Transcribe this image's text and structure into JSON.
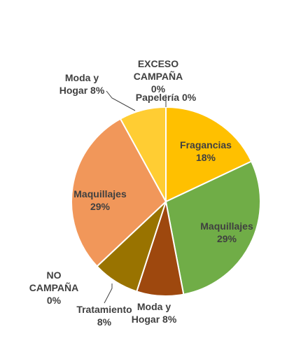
{
  "chart_data": {
    "type": "pie",
    "grid": false,
    "legend": "none",
    "slices": [
      {
        "id": "fragancias",
        "label": [
          "Fragancias",
          "18%"
        ],
        "value": 18,
        "color": "#FFC000"
      },
      {
        "id": "maquillajes-a",
        "label": [
          "Maquillajes",
          "29%"
        ],
        "value": 29,
        "color": "#70AD47"
      },
      {
        "id": "moda-hogar-a",
        "label": [
          "Moda y",
          "Hogar 8%"
        ],
        "value": 8,
        "color": "#9E480E"
      },
      {
        "id": "tratamiento",
        "label": [
          "Tratamiento",
          "8%"
        ],
        "value": 8,
        "color": "#997300"
      },
      {
        "id": "no-campana",
        "label": [
          "NO",
          "CAMPAÑA",
          "0%"
        ],
        "value": 0,
        "color": "#5B9BD5"
      },
      {
        "id": "maquillajes-b",
        "label": [
          "Maquillajes",
          "29%"
        ],
        "value": 29,
        "color": "#F1975A"
      },
      {
        "id": "moda-hogar-b",
        "label": [
          "Moda y",
          "Hogar 8%"
        ],
        "value": 8,
        "color": "#FFCD33"
      },
      {
        "id": "exceso-campana",
        "label": [
          "EXCESO",
          "CAMPAÑA",
          "0%"
        ],
        "value": 0,
        "color": "#A5A5A5"
      },
      {
        "id": "papeleria",
        "label": [
          "Papelería 0%"
        ],
        "value": 0,
        "color": "#4472C4"
      }
    ]
  }
}
